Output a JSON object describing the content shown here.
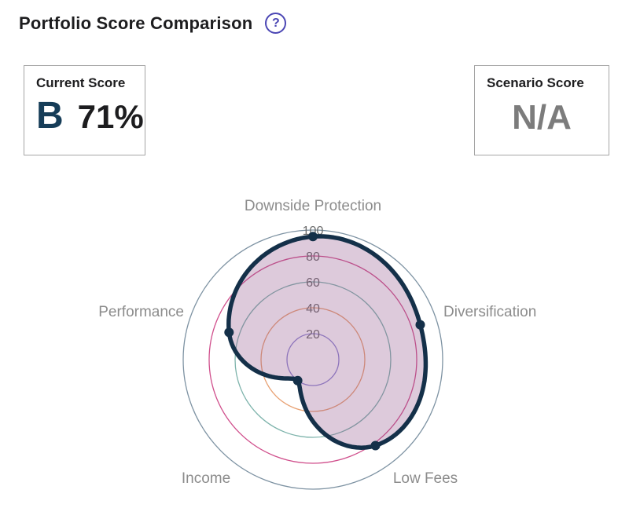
{
  "header": {
    "title": "Portfolio Score Comparison",
    "help_label": "?"
  },
  "scores": {
    "current": {
      "label": "Current Score",
      "grade": "B",
      "percent": "71%"
    },
    "scenario": {
      "label": "Scenario Score",
      "value": "N/A"
    }
  },
  "colors": {
    "accent_indigo": "#4b46b4",
    "grade_navy": "#163d58",
    "na_gray": "#7c7c7c",
    "box_border": "#a5a5a5",
    "axis_label_gray": "#8c8c8c",
    "tick_gray": "#6b6b6b"
  },
  "chart_data": {
    "type": "radar",
    "title": "Portfolio Score Comparison",
    "categories": [
      "Downside Protection",
      "Diversification",
      "Low Fees",
      "Income",
      "Performance"
    ],
    "values": [
      95,
      87,
      82,
      20,
      68
    ],
    "ticks": [
      20,
      40,
      60,
      80,
      100
    ],
    "axis_range": [
      0,
      100
    ],
    "grid": "concentric-circles",
    "legend": "none",
    "smoothing": "curved",
    "ring_colors": [
      "#8d85d1",
      "#e8a173",
      "#7db3ab",
      "#d04f8c",
      "#7e93a3"
    ],
    "series_fill": "rgba(141,78,136,0.30)",
    "series_stroke": "#143049"
  }
}
